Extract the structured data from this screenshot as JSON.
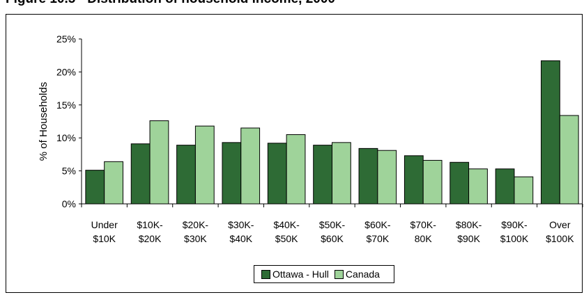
{
  "figure_title": "Figure 10.5 - Distribution of household income, 2000",
  "colors": {
    "ottawa": "#2e6b35",
    "canada": "#9fd39a"
  },
  "chart_data": {
    "type": "bar",
    "title": "Figure 10.5 - Distribution of household income, 2000",
    "ylabel": "% of Households",
    "xlabel": "",
    "ylim": [
      0,
      25
    ],
    "yticks": [
      "0%",
      "5%",
      "10%",
      "15%",
      "20%",
      "25%"
    ],
    "categories": [
      [
        "Under",
        "$10K"
      ],
      [
        "$10K-",
        "$20K"
      ],
      [
        "$20K-",
        "$30K"
      ],
      [
        "$30K-",
        "$40K"
      ],
      [
        "$40K-",
        "$50K"
      ],
      [
        "$50K-",
        "$60K"
      ],
      [
        "$60K-",
        "$70K"
      ],
      [
        "$70K-",
        "80K"
      ],
      [
        "$80K-",
        "$90K"
      ],
      [
        "$90K-",
        "$100K"
      ],
      [
        "Over",
        "$100K"
      ]
    ],
    "series": [
      {
        "name": "Ottawa - Hull",
        "values": [
          5.1,
          9.1,
          8.9,
          9.3,
          9.2,
          8.9,
          8.4,
          7.3,
          6.3,
          5.3,
          21.7
        ]
      },
      {
        "name": "Canada",
        "values": [
          6.4,
          12.6,
          11.8,
          11.5,
          10.5,
          9.3,
          8.1,
          6.6,
          5.3,
          4.1,
          13.4
        ]
      }
    ],
    "legend_position": "bottom"
  }
}
